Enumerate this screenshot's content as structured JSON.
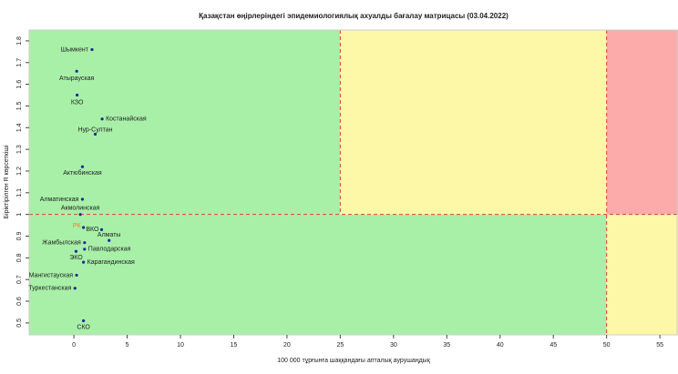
{
  "chart_data": {
    "type": "scatter",
    "title": "Қазақстан өңірлеріндегі эпидемиологиялық ахуалды бағалау матрицасы  (03.04.2022)",
    "x_label": "100 000 тұрғынға шаққандағы апталық аурушаңдық",
    "y_label": "Біріктірілген R көрсеткіші",
    "labels": [
      "Шымкент",
      "Атырауская",
      "КЗО",
      "Костанайская",
      "Нур-Султан",
      "Актюбинская",
      "Алматинская",
      "Акмолинская",
      "РК",
      "ВКО",
      "Алматы",
      "Жамбылская",
      "Павлодарская",
      "ЭКО",
      "Карагандинская",
      "Мангистауская",
      "Туркестанская",
      "СКО"
    ],
    "x": [
      1.7,
      0.26,
      0.3,
      2.65,
      2.0,
      0.8,
      0.8,
      0.6,
      0.9,
      2.6,
      3.3,
      1.0,
      1.0,
      0.2,
      0.9,
      0.25,
      0.1,
      0.9
    ],
    "values": [
      1.76,
      1.66,
      1.55,
      1.44,
      1.37,
      1.22,
      1.07,
      1.0,
      0.94,
      0.93,
      0.88,
      0.87,
      0.84,
      0.83,
      0.78,
      0.72,
      0.66,
      0.51
    ],
    "color": "#1a2a9e",
    "label_colors": [
      "#222222",
      "#222222",
      "#222222",
      "#222222",
      "#222222",
      "#222222",
      "#222222",
      "#222222",
      "#e0822a",
      "#222222",
      "#222222",
      "#222222",
      "#222222",
      "#222222",
      "#222222",
      "#222222",
      "#222222",
      "#222222"
    ],
    "xlim": [
      -4.2,
      56.7
    ],
    "ylim": [
      0.445,
      1.85
    ],
    "xticks": [
      0,
      5,
      10,
      15,
      20,
      25,
      30,
      35,
      40,
      45,
      50,
      55
    ],
    "yticks": [
      0.5,
      0.6,
      0.7,
      0.8,
      0.9,
      1.0,
      1.1,
      1.2,
      1.3,
      1.4,
      1.5,
      1.6,
      1.7,
      1.8
    ],
    "thresholds": {
      "x": [
        25,
        50
      ],
      "y": 1.0
    },
    "zone_colors": {
      "green": "#a8f0a8",
      "yellow": "#fdf8a8",
      "red": "#fcaaaa",
      "line": "#e0403a"
    }
  }
}
